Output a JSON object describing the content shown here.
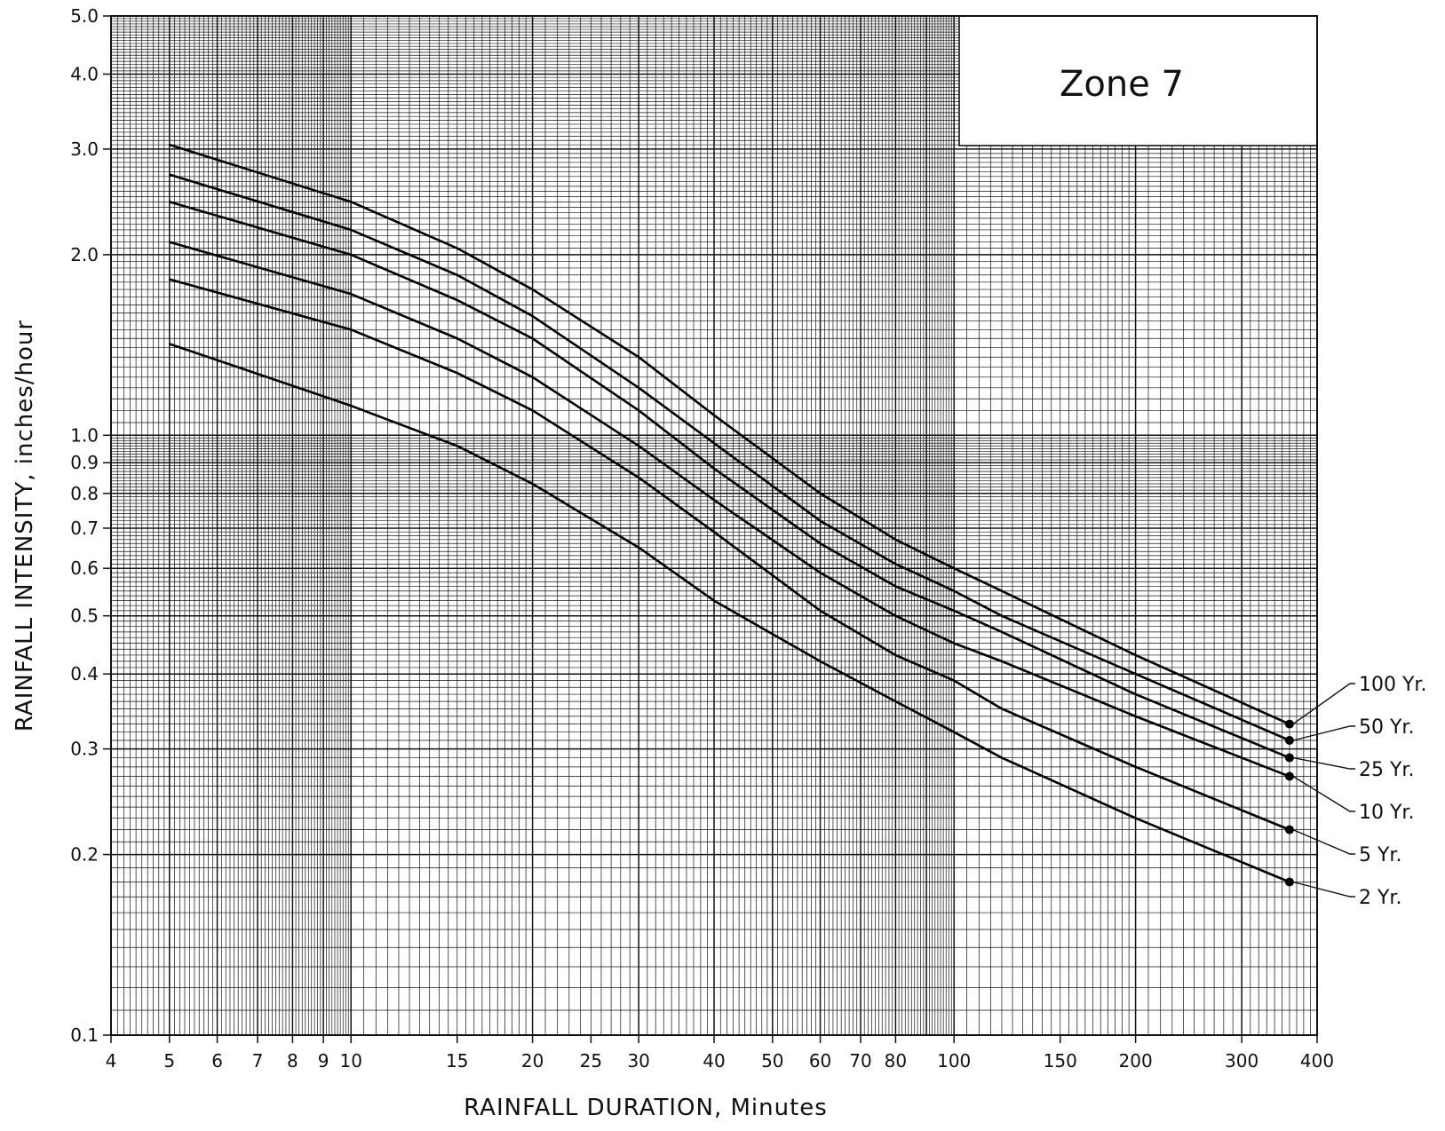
{
  "chart_data": {
    "type": "line",
    "title": "Zone 7",
    "xlabel": "RAINFALL DURATION, Minutes",
    "ylabel": "RAINFALL INTENSITY, inches/hour",
    "x_scale": "log",
    "y_scale": "log",
    "xlim": [
      4,
      400
    ],
    "ylim": [
      0.1,
      5.0
    ],
    "grid": true,
    "legend_placement": "right",
    "x_tick_labels": [
      {
        "value": 4,
        "label": "4"
      },
      {
        "value": 5,
        "label": "5"
      },
      {
        "value": 6,
        "label": "6"
      },
      {
        "value": 7,
        "label": "7"
      },
      {
        "value": 8,
        "label": "8"
      },
      {
        "value": 9,
        "label": "9"
      },
      {
        "value": 10,
        "label": "10"
      },
      {
        "value": 15,
        "label": "15"
      },
      {
        "value": 20,
        "label": "20"
      },
      {
        "value": 25,
        "label": "25"
      },
      {
        "value": 30,
        "label": "30"
      },
      {
        "value": 40,
        "label": "40"
      },
      {
        "value": 50,
        "label": "50"
      },
      {
        "value": 60,
        "label": "60"
      },
      {
        "value": 70,
        "label": "70"
      },
      {
        "value": 80,
        "label": "80"
      },
      {
        "value": 100,
        "label": "100"
      },
      {
        "value": 150,
        "label": "150"
      },
      {
        "value": 200,
        "label": "200"
      },
      {
        "value": 300,
        "label": "300"
      },
      {
        "value": 400,
        "label": "400"
      }
    ],
    "y_tick_labels": [
      {
        "value": 0.1,
        "label": "0.1"
      },
      {
        "value": 0.2,
        "label": "0.2"
      },
      {
        "value": 0.3,
        "label": "0.3"
      },
      {
        "value": 0.4,
        "label": "0.4"
      },
      {
        "value": 0.5,
        "label": "0.5"
      },
      {
        "value": 0.6,
        "label": "0.6"
      },
      {
        "value": 0.7,
        "label": "0.7"
      },
      {
        "value": 0.8,
        "label": "0.8"
      },
      {
        "value": 0.9,
        "label": "0.9"
      },
      {
        "value": 1.0,
        "label": "1.0"
      },
      {
        "value": 2.0,
        "label": "2.0"
      },
      {
        "value": 3.0,
        "label": "3.0"
      },
      {
        "value": 4.0,
        "label": "4.0"
      },
      {
        "value": 5.0,
        "label": "5.0"
      }
    ],
    "series": [
      {
        "name": "100 Yr.",
        "x": [
          5,
          10,
          15,
          20,
          30,
          40,
          60,
          80,
          100,
          120,
          200,
          360
        ],
        "y": [
          3.05,
          2.45,
          2.05,
          1.75,
          1.35,
          1.08,
          0.8,
          0.67,
          0.6,
          0.55,
          0.43,
          0.33
        ]
      },
      {
        "name": "50 Yr.",
        "x": [
          5,
          10,
          15,
          20,
          30,
          40,
          60,
          80,
          100,
          120,
          200,
          360
        ],
        "y": [
          2.72,
          2.2,
          1.85,
          1.58,
          1.2,
          0.97,
          0.72,
          0.61,
          0.55,
          0.5,
          0.4,
          0.31
        ]
      },
      {
        "name": "25 Yr.",
        "x": [
          5,
          10,
          15,
          20,
          30,
          40,
          60,
          80,
          100,
          120,
          200,
          360
        ],
        "y": [
          2.45,
          2.0,
          1.68,
          1.45,
          1.1,
          0.88,
          0.66,
          0.56,
          0.51,
          0.47,
          0.37,
          0.29
        ]
      },
      {
        "name": "10 Yr.",
        "x": [
          5,
          10,
          15,
          20,
          30,
          40,
          60,
          80,
          100,
          120,
          200,
          360
        ],
        "y": [
          2.1,
          1.72,
          1.45,
          1.25,
          0.96,
          0.78,
          0.59,
          0.5,
          0.45,
          0.42,
          0.34,
          0.27
        ]
      },
      {
        "name": "5 Yr.",
        "x": [
          5,
          10,
          15,
          20,
          30,
          40,
          60,
          80,
          100,
          120,
          200,
          360
        ],
        "y": [
          1.82,
          1.5,
          1.27,
          1.1,
          0.85,
          0.69,
          0.51,
          0.43,
          0.39,
          0.35,
          0.28,
          0.22
        ]
      },
      {
        "name": "2 Yr.",
        "x": [
          5,
          10,
          15,
          20,
          30,
          40,
          60,
          80,
          100,
          120,
          200,
          360
        ],
        "y": [
          1.42,
          1.12,
          0.96,
          0.83,
          0.65,
          0.53,
          0.42,
          0.36,
          0.32,
          0.29,
          0.23,
          0.18
        ]
      }
    ]
  }
}
